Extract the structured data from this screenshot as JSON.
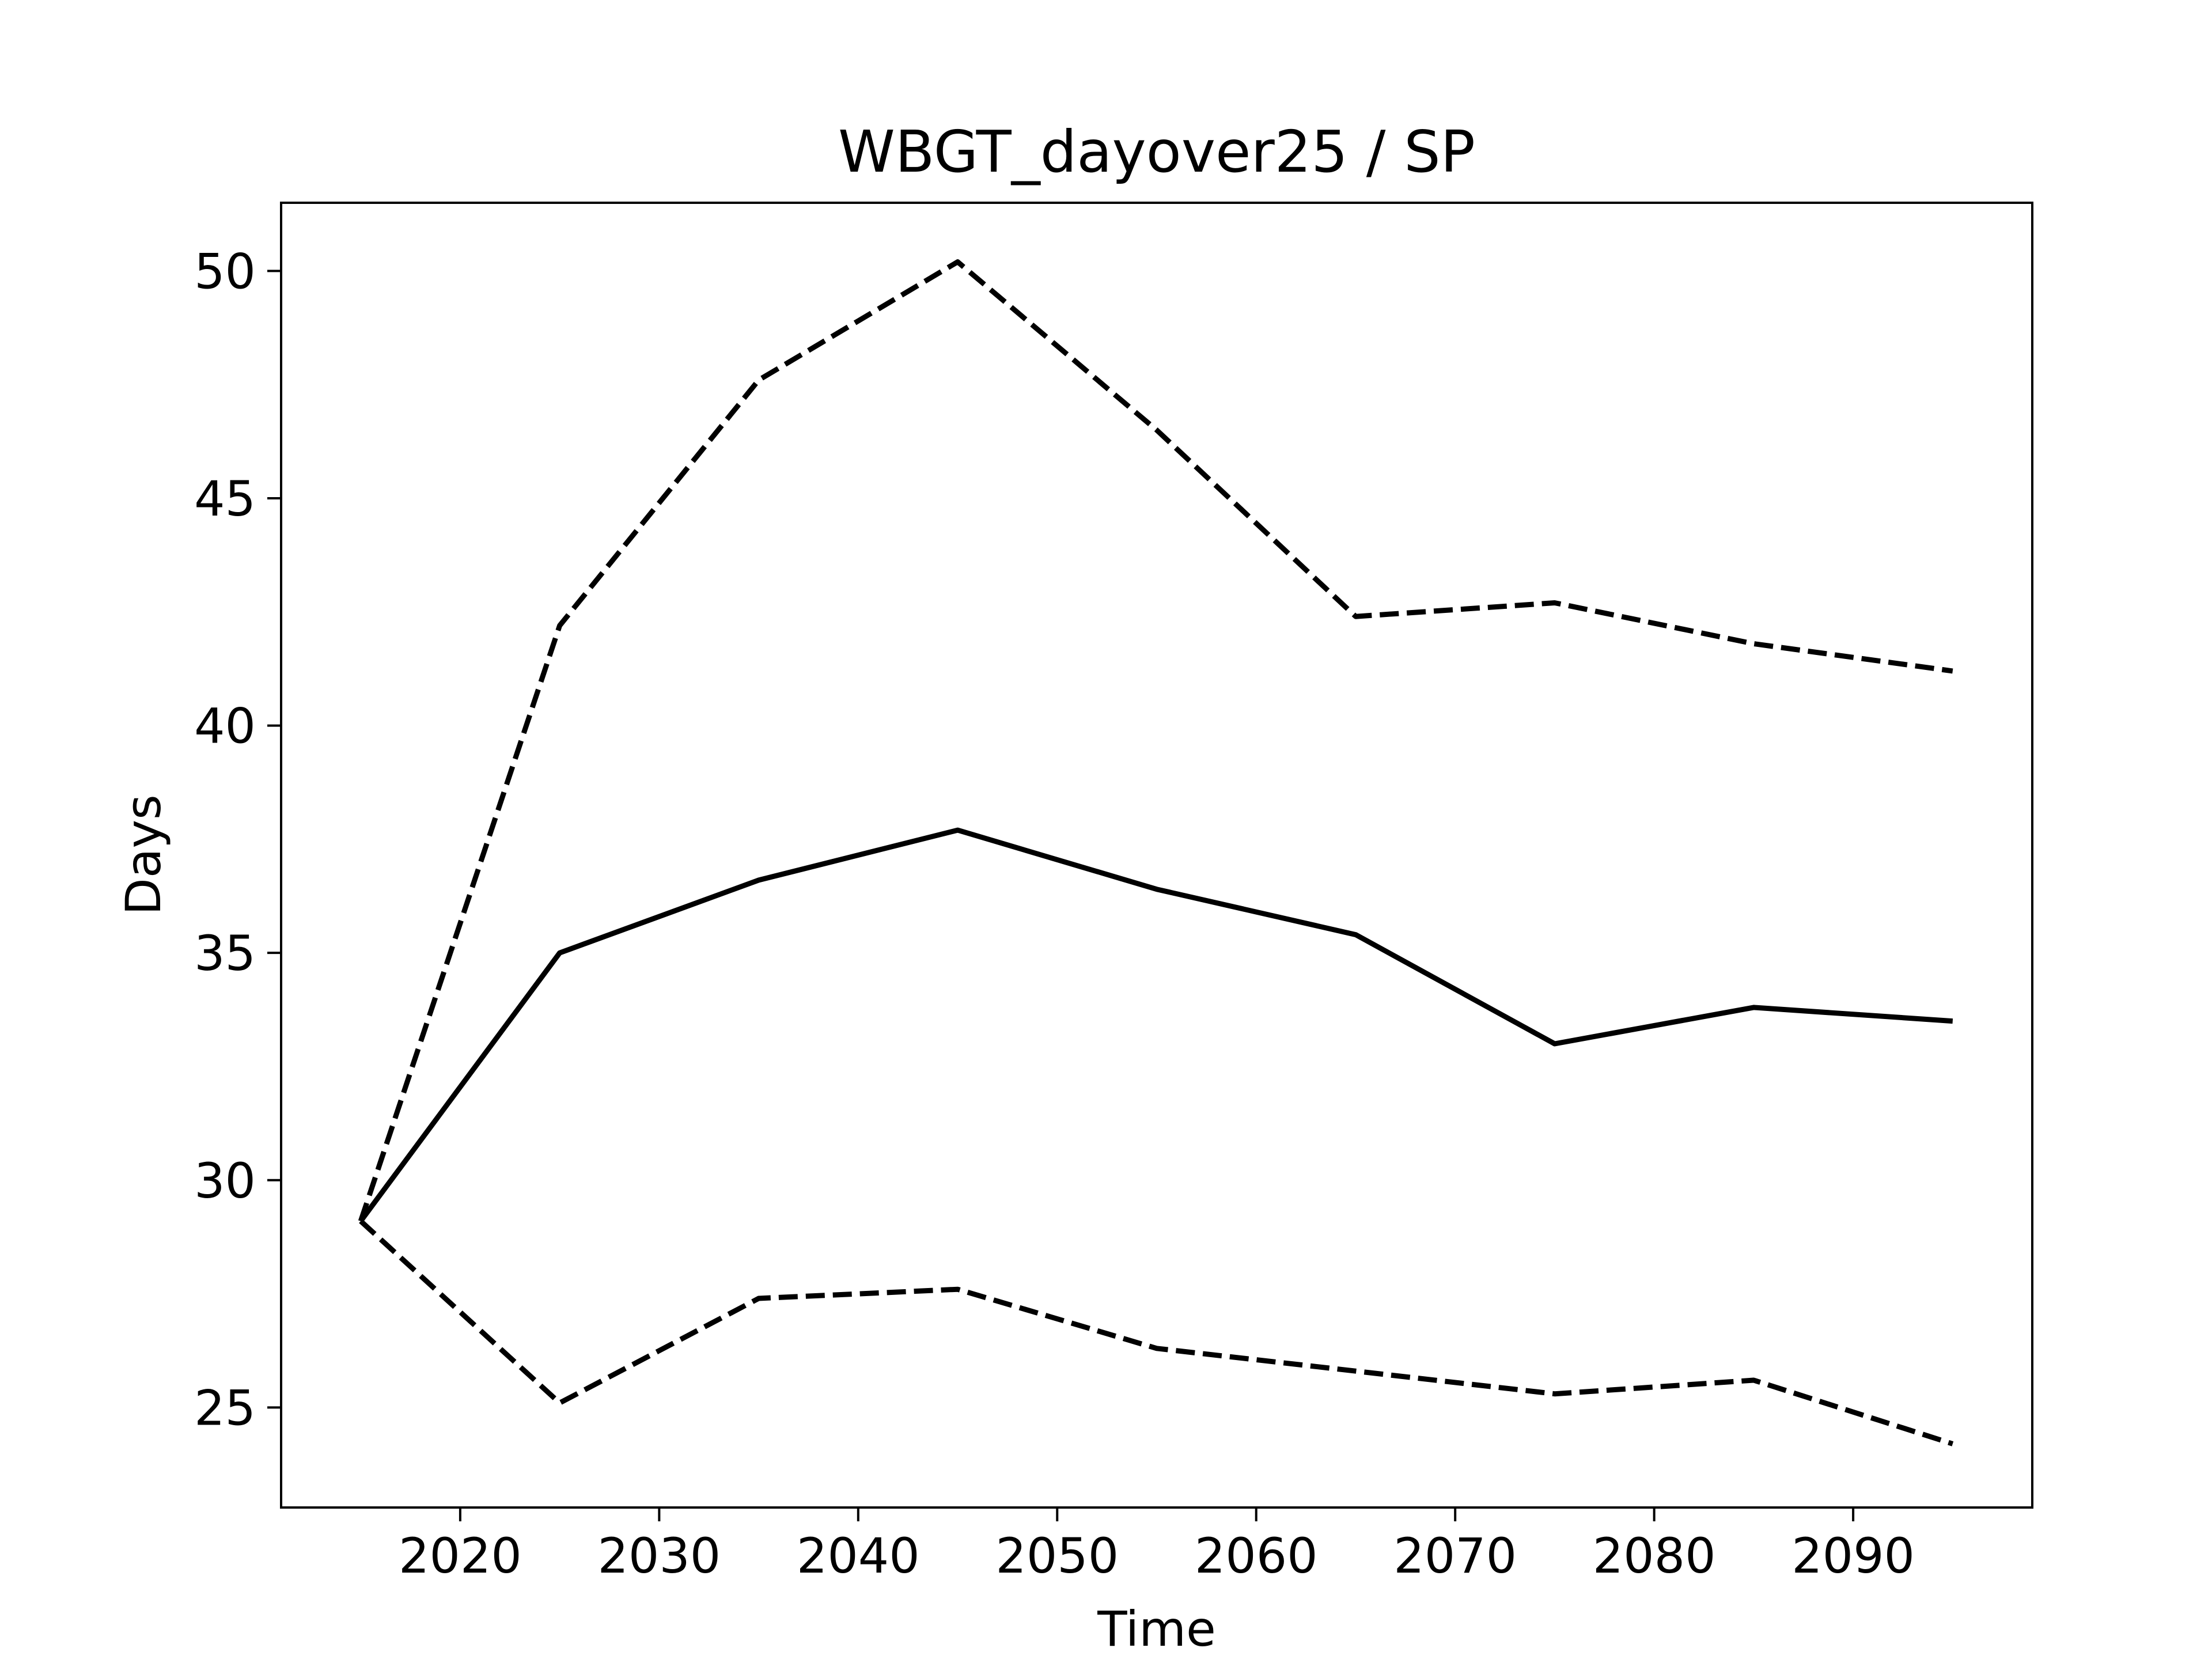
{
  "chart_data": {
    "type": "line",
    "title": "WBGT_dayover25 / SP",
    "xlabel": "Time",
    "ylabel": "Days",
    "xlim": [
      2011.0,
      2099.0
    ],
    "ylim": [
      22.8,
      51.5
    ],
    "xticks": [
      2020,
      2030,
      2040,
      2050,
      2060,
      2070,
      2080,
      2090
    ],
    "yticks": [
      25,
      30,
      35,
      40,
      45,
      50
    ],
    "grid": false,
    "legend": false,
    "x": [
      2015,
      2025,
      2035,
      2045,
      2055,
      2065,
      2075,
      2085,
      2095
    ],
    "series": [
      {
        "style": "solid",
        "color": "#000000",
        "values": [
          29.1,
          35.0,
          36.6,
          37.7,
          36.4,
          35.4,
          33.0,
          33.8,
          33.5
        ]
      },
      {
        "style": "dashed",
        "color": "#000000",
        "values": [
          29.1,
          42.2,
          47.6,
          50.2,
          46.5,
          42.4,
          42.7,
          41.8,
          41.2
        ]
      },
      {
        "style": "dashed",
        "color": "#000000",
        "values": [
          29.1,
          25.1,
          27.4,
          27.6,
          26.3,
          25.8,
          25.3,
          25.6,
          24.2
        ]
      }
    ]
  }
}
